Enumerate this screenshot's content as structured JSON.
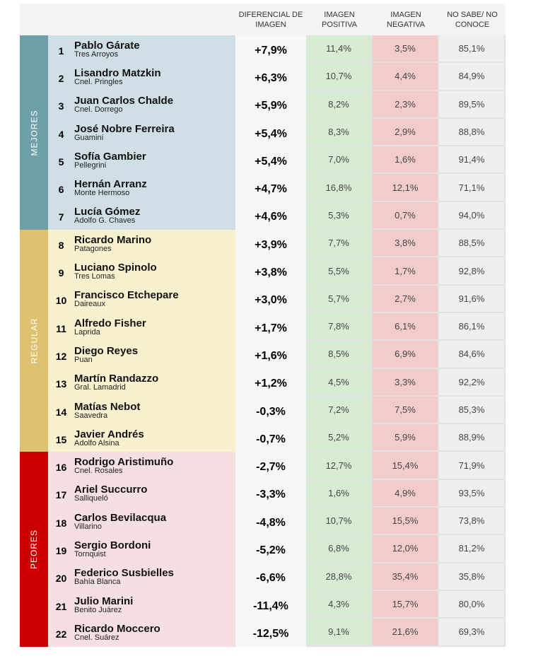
{
  "header": {
    "diff": "DIFERENCIAL DE IMAGEN",
    "pos": "IMAGEN POSITIVA",
    "neg": "IMAGEN NEGATIVA",
    "ns": "NO SABE/ NO CONOCE"
  },
  "categories": [
    {
      "label": "MEJORES",
      "color": "#6f9fa8",
      "row_bg": "#cfdfe5",
      "count": 7
    },
    {
      "label": "REGULAR",
      "color": "#dfc270",
      "row_bg": "#f8f1cf",
      "count": 8
    },
    {
      "label": "PEORES",
      "color": "#cc0000",
      "row_bg": "#f6dfe0",
      "count": 7
    }
  ],
  "rows": [
    {
      "rank": "1",
      "name": "Pablo Gárate",
      "city": "Tres Arroyos",
      "diff": "+7,9%",
      "pos": "11,4%",
      "neg": "3,5%",
      "ns": "85,1%"
    },
    {
      "rank": "2",
      "name": "Lisandro Matzkin",
      "city": "Cnel. Pringles",
      "diff": "+6,3%",
      "pos": "10,7%",
      "neg": "4,4%",
      "ns": "84,9%"
    },
    {
      "rank": "3",
      "name": "Juan Carlos Chalde",
      "city": "Cnel. Dorrego",
      "diff": "+5,9%",
      "pos": "8,2%",
      "neg": "2,3%",
      "ns": "89,5%"
    },
    {
      "rank": "4",
      "name": "José Nobre Ferreira",
      "city": "Guaminí",
      "diff": "+5,4%",
      "pos": "8,3%",
      "neg": "2,9%",
      "ns": "88,8%"
    },
    {
      "rank": "5",
      "name": "Sofía Gambier",
      "city": "Pellegrini",
      "diff": "+5,4%",
      "pos": "7,0%",
      "neg": "1,6%",
      "ns": "91,4%"
    },
    {
      "rank": "6",
      "name": "Hernán Arranz",
      "city": "Monte Hermoso",
      "diff": "+4,7%",
      "pos": "16,8%",
      "neg": "12,1%",
      "ns": "71,1%"
    },
    {
      "rank": "7",
      "name": "Lucía Gómez",
      "city": "Adolfo G. Chaves",
      "diff": "+4,6%",
      "pos": "5,3%",
      "neg": "0,7%",
      "ns": "94,0%"
    },
    {
      "rank": "8",
      "name": "Ricardo Marino",
      "city": "Patagones",
      "diff": "+3,9%",
      "pos": "7,7%",
      "neg": "3,8%",
      "ns": "88,5%"
    },
    {
      "rank": "9",
      "name": "Luciano Spinolo",
      "city": "Tres Lomas",
      "diff": "+3,8%",
      "pos": "5,5%",
      "neg": "1,7%",
      "ns": "92,8%"
    },
    {
      "rank": "10",
      "name": "Francisco Etchepare",
      "city": "Daireaux",
      "diff": "+3,0%",
      "pos": "5,7%",
      "neg": "2,7%",
      "ns": "91,6%"
    },
    {
      "rank": "11",
      "name": "Alfredo Fisher",
      "city": "Laprida",
      "diff": "+1,7%",
      "pos": "7,8%",
      "neg": "6,1%",
      "ns": "86,1%"
    },
    {
      "rank": "12",
      "name": "Diego Reyes",
      "city": "Puan",
      "diff": "+1,6%",
      "pos": "8,5%",
      "neg": "6,9%",
      "ns": "84,6%"
    },
    {
      "rank": "13",
      "name": "Martín Randazzo",
      "city": "Gral. Lamadrid",
      "diff": "+1,2%",
      "pos": "4,5%",
      "neg": "3,3%",
      "ns": "92,2%"
    },
    {
      "rank": "14",
      "name": "Matías Nebot",
      "city": "Saavedra",
      "diff": "-0,3%",
      "pos": "7,2%",
      "neg": "7,5%",
      "ns": "85,3%"
    },
    {
      "rank": "15",
      "name": "Javier Andrés",
      "city": "Adolfo Alsina",
      "diff": "-0,7%",
      "pos": "5,2%",
      "neg": "5,9%",
      "ns": "88,9%"
    },
    {
      "rank": "16",
      "name": "Rodrigo Aristimuño",
      "city": "Cnel. Rosales",
      "diff": "-2,7%",
      "pos": "12,7%",
      "neg": "15,4%",
      "ns": "71,9%"
    },
    {
      "rank": "17",
      "name": "Ariel Succurro",
      "city": "Salliqueló",
      "diff": "-3,3%",
      "pos": "1,6%",
      "neg": "4,9%",
      "ns": "93,5%"
    },
    {
      "rank": "18",
      "name": "Carlos Bevilacqua",
      "city": "Villarino",
      "diff": "-4,8%",
      "pos": "10,7%",
      "neg": "15,5%",
      "ns": "73,8%"
    },
    {
      "rank": "19",
      "name": "Sergio Bordoni",
      "city": "Tornquist",
      "diff": "-5,2%",
      "pos": "6,8%",
      "neg": "12,0%",
      "ns": "81,2%"
    },
    {
      "rank": "20",
      "name": "Federico Susbielles",
      "city": "Bahía Blanca",
      "diff": "-6,6%",
      "pos": "28,8%",
      "neg": "35,4%",
      "ns": "35,8%"
    },
    {
      "rank": "21",
      "name": "Julio Marini",
      "city": "Benito Juárez",
      "diff": "-11,4%",
      "pos": "4,3%",
      "neg": "15,7%",
      "ns": "80,0%"
    },
    {
      "rank": "22",
      "name": "Ricardo Moccero",
      "city": "Cnel. Suárez",
      "diff": "-12,5%",
      "pos": "9,1%",
      "neg": "21,6%",
      "ns": "69,3%"
    }
  ]
}
